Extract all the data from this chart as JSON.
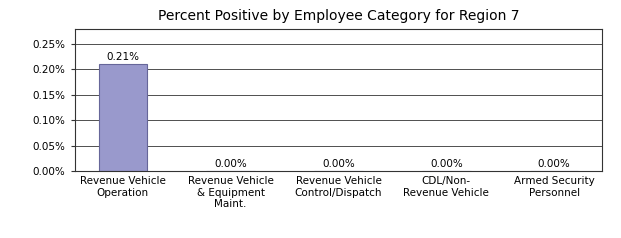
{
  "title": "Percent Positive by Employee Category for Region 7",
  "categories": [
    "Revenue Vehicle\nOperation",
    "Revenue Vehicle\n& Equipment\nMaint.",
    "Revenue Vehicle\nControl/Dispatch",
    "CDL/Non-\nRevenue Vehicle",
    "Armed Security\nPersonnel"
  ],
  "values": [
    0.0021,
    0.0,
    0.0,
    0.0,
    0.0
  ],
  "bar_color": "#9999cc",
  "bar_edge_color": "#666699",
  "ylim": [
    0,
    0.0028
  ],
  "yticks": [
    0.0,
    0.0005,
    0.001,
    0.0015,
    0.002,
    0.0025
  ],
  "ytick_labels": [
    "0.00%",
    "0.05%",
    "0.10%",
    "0.15%",
    "0.20%",
    "0.25%"
  ],
  "label_0": "0.21%",
  "label_others": "0.00%",
  "background_color": "#ffffff",
  "title_fontsize": 10,
  "tick_fontsize": 7.5,
  "label_fontsize": 7.5,
  "bar_width": 0.45
}
